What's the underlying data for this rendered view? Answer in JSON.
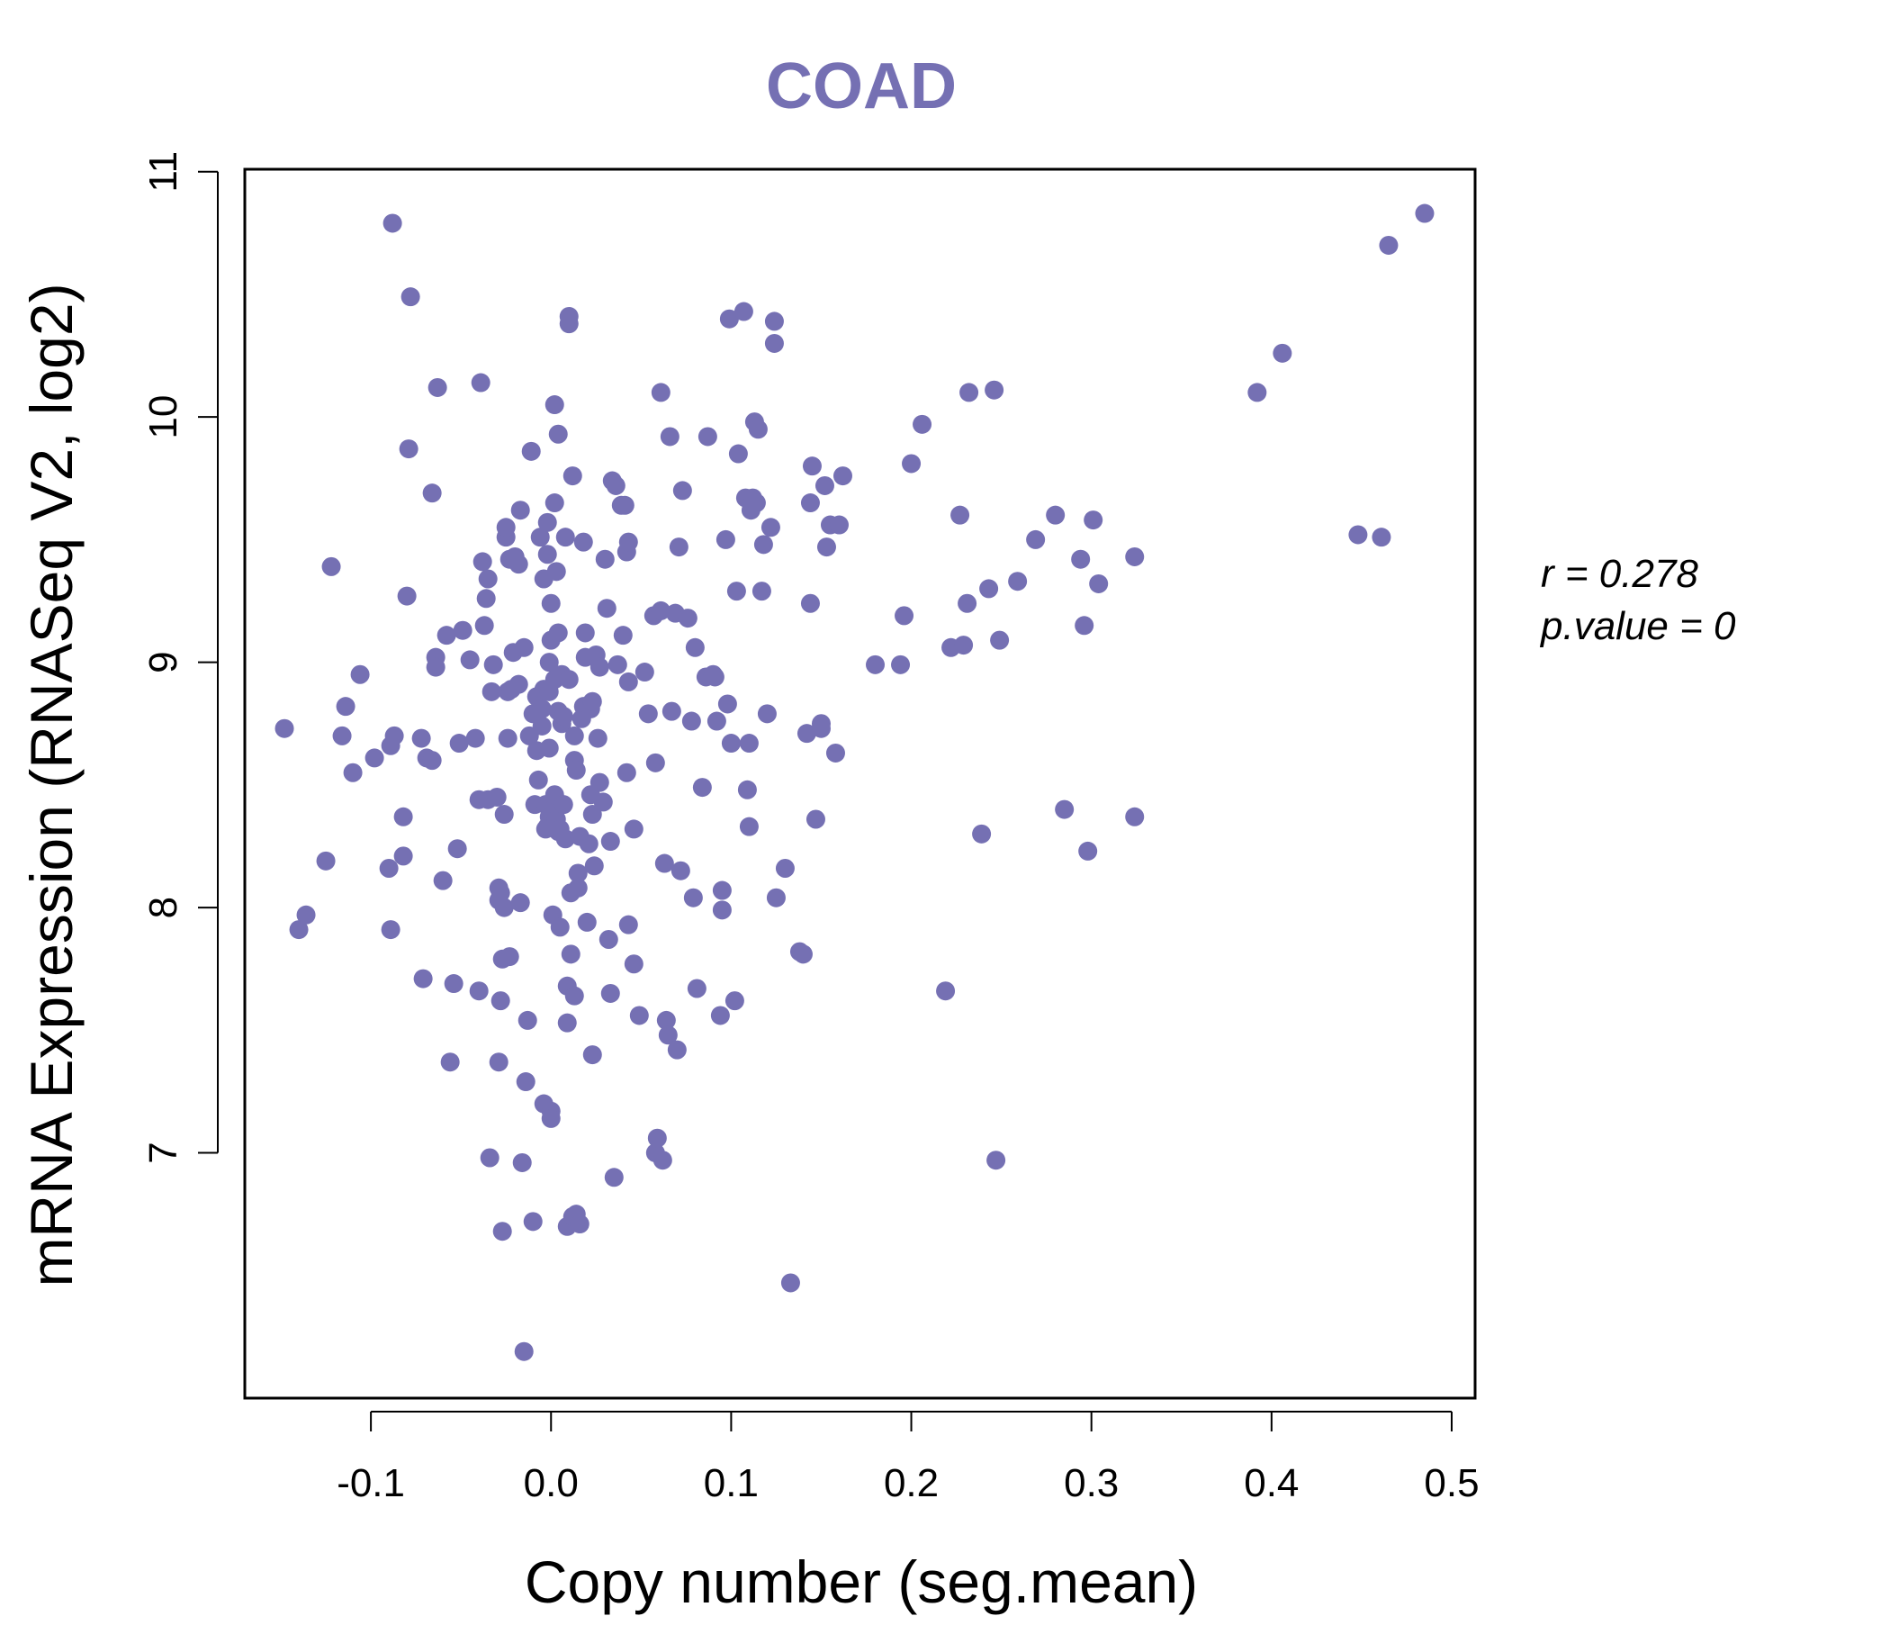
{
  "chart_data": {
    "type": "scatter",
    "title": "COAD",
    "xlabel": "Copy number (seg.mean)",
    "ylabel": "mRNA Expression (RNASeq V2, log2)",
    "xlim": [
      -0.17,
      0.513
    ],
    "ylim": [
      6.0,
      11.01
    ],
    "x_ticks": [
      -0.1,
      0.0,
      0.1,
      0.2,
      0.3,
      0.4,
      0.5
    ],
    "x_tick_labels": [
      "-0.1",
      "0.0",
      "0.1",
      "0.2",
      "0.3",
      "0.4",
      "0.5"
    ],
    "y_ticks": [
      7,
      8,
      9,
      10,
      11
    ],
    "y_tick_labels": [
      "7",
      "8",
      "9",
      "10",
      "11"
    ],
    "grid": false,
    "colors": {
      "points": "#7570b3",
      "title": "#7570b3",
      "axes": "#000000"
    },
    "stats": {
      "r_line": "r = 0.278",
      "p_line": "p.value = 0"
    },
    "points": [
      [
        -0.148,
        8.73
      ],
      [
        -0.14,
        7.91
      ],
      [
        -0.136,
        7.97
      ],
      [
        -0.125,
        8.19
      ],
      [
        -0.122,
        9.39
      ],
      [
        -0.116,
        8.7
      ],
      [
        -0.114,
        8.82
      ],
      [
        -0.11,
        8.55
      ],
      [
        -0.106,
        8.95
      ],
      [
        -0.098,
        8.61
      ],
      [
        -0.09,
        8.16
      ],
      [
        -0.089,
        7.91
      ],
      [
        -0.089,
        8.66
      ],
      [
        -0.087,
        8.7
      ],
      [
        -0.088,
        10.79
      ],
      [
        -0.082,
        8.21
      ],
      [
        -0.082,
        8.37
      ],
      [
        -0.08,
        9.27
      ],
      [
        -0.079,
        9.87
      ],
      [
        -0.078,
        10.49
      ],
      [
        -0.072,
        8.69
      ],
      [
        -0.071,
        7.71
      ],
      [
        -0.069,
        8.61
      ],
      [
        -0.066,
        8.6
      ],
      [
        -0.066,
        9.69
      ],
      [
        -0.064,
        9.02
      ],
      [
        -0.064,
        8.98
      ],
      [
        -0.063,
        10.12
      ],
      [
        -0.06,
        8.11
      ],
      [
        -0.058,
        9.11
      ],
      [
        -0.056,
        7.37
      ],
      [
        -0.054,
        7.69
      ],
      [
        -0.052,
        8.24
      ],
      [
        -0.051,
        8.67
      ],
      [
        -0.049,
        9.13
      ],
      [
        -0.045,
        9.01
      ],
      [
        -0.042,
        8.69
      ],
      [
        -0.04,
        8.44
      ],
      [
        -0.04,
        7.66
      ],
      [
        -0.039,
        10.14
      ],
      [
        -0.038,
        9.41
      ],
      [
        -0.037,
        9.15
      ],
      [
        -0.036,
        9.26
      ],
      [
        -0.035,
        8.44
      ],
      [
        -0.035,
        9.34
      ],
      [
        -0.034,
        6.98
      ],
      [
        -0.033,
        8.88
      ],
      [
        -0.032,
        8.99
      ],
      [
        -0.03,
        8.45
      ],
      [
        -0.029,
        7.37
      ],
      [
        -0.029,
        8.03
      ],
      [
        -0.029,
        8.08
      ],
      [
        -0.028,
        8.06
      ],
      [
        -0.028,
        7.62
      ],
      [
        -0.027,
        7.79
      ],
      [
        -0.027,
        6.68
      ],
      [
        -0.026,
        8.38
      ],
      [
        -0.026,
        8.0
      ],
      [
        -0.025,
        9.51
      ],
      [
        -0.025,
        9.55
      ],
      [
        -0.024,
        8.88
      ],
      [
        -0.024,
        8.69
      ],
      [
        -0.023,
        7.8
      ],
      [
        -0.023,
        9.42
      ],
      [
        -0.022,
        8.89
      ],
      [
        -0.021,
        9.04
      ],
      [
        -0.02,
        9.43
      ],
      [
        -0.018,
        9.4
      ],
      [
        -0.018,
        8.91
      ],
      [
        -0.017,
        9.62
      ],
      [
        -0.017,
        8.02
      ],
      [
        -0.016,
        6.96
      ],
      [
        -0.015,
        6.19
      ],
      [
        -0.015,
        9.06
      ],
      [
        -0.014,
        7.29
      ],
      [
        -0.013,
        7.54
      ],
      [
        -0.012,
        8.7
      ],
      [
        -0.011,
        9.86
      ],
      [
        -0.01,
        8.79
      ],
      [
        -0.01,
        6.72
      ],
      [
        -0.009,
        8.42
      ],
      [
        -0.008,
        8.64
      ],
      [
        -0.008,
        8.86
      ],
      [
        -0.007,
        8.52
      ],
      [
        -0.006,
        9.51
      ],
      [
        -0.005,
        8.81
      ],
      [
        -0.005,
        8.74
      ],
      [
        -0.004,
        8.89
      ],
      [
        -0.004,
        7.2
      ],
      [
        -0.004,
        9.34
      ],
      [
        -0.003,
        8.42
      ],
      [
        -0.003,
        8.32
      ],
      [
        -0.002,
        8.33
      ],
      [
        -0.002,
        9.44
      ],
      [
        -0.002,
        9.57
      ],
      [
        -0.001,
        8.65
      ],
      [
        -0.001,
        8.88
      ],
      [
        -0.001,
        8.37
      ],
      [
        -0.001,
        9.0
      ],
      [
        0.0,
        9.09
      ],
      [
        0.0,
        9.24
      ],
      [
        0.0,
        7.17
      ],
      [
        0.0,
        7.14
      ],
      [
        0.001,
        7.97
      ],
      [
        0.001,
        8.4
      ],
      [
        0.002,
        9.65
      ],
      [
        0.002,
        8.93
      ],
      [
        0.002,
        8.46
      ],
      [
        0.002,
        10.05
      ],
      [
        0.003,
        8.36
      ],
      [
        0.003,
        9.37
      ],
      [
        0.004,
        8.8
      ],
      [
        0.004,
        8.31
      ],
      [
        0.004,
        9.12
      ],
      [
        0.004,
        9.93
      ],
      [
        0.005,
        7.92
      ],
      [
        0.005,
        8.32
      ],
      [
        0.006,
        8.95
      ],
      [
        0.006,
        8.75
      ],
      [
        0.007,
        8.78
      ],
      [
        0.007,
        8.42
      ],
      [
        0.008,
        9.51
      ],
      [
        0.008,
        8.28
      ],
      [
        0.009,
        6.7
      ],
      [
        0.009,
        7.53
      ],
      [
        0.009,
        7.68
      ],
      [
        0.01,
        10.38
      ],
      [
        0.01,
        10.41
      ],
      [
        0.01,
        8.93
      ],
      [
        0.011,
        7.81
      ],
      [
        0.011,
        8.06
      ],
      [
        0.012,
        9.76
      ],
      [
        0.012,
        6.74
      ],
      [
        0.013,
        8.7
      ],
      [
        0.013,
        8.6
      ],
      [
        0.013,
        7.64
      ],
      [
        0.014,
        6.75
      ],
      [
        0.014,
        8.56
      ],
      [
        0.015,
        8.14
      ],
      [
        0.015,
        8.08
      ],
      [
        0.016,
        8.29
      ],
      [
        0.016,
        6.71
      ],
      [
        0.017,
        8.77
      ],
      [
        0.018,
        9.49
      ],
      [
        0.018,
        8.82
      ],
      [
        0.019,
        9.02
      ],
      [
        0.019,
        9.12
      ],
      [
        0.02,
        7.94
      ],
      [
        0.021,
        8.26
      ],
      [
        0.022,
        8.81
      ],
      [
        0.022,
        8.46
      ],
      [
        0.023,
        8.38
      ],
      [
        0.023,
        8.84
      ],
      [
        0.023,
        7.4
      ],
      [
        0.024,
        8.17
      ],
      [
        0.025,
        9.03
      ],
      [
        0.026,
        8.69
      ],
      [
        0.027,
        8.51
      ],
      [
        0.027,
        8.98
      ],
      [
        0.029,
        8.43
      ],
      [
        0.03,
        9.42
      ],
      [
        0.031,
        9.22
      ],
      [
        0.032,
        7.87
      ],
      [
        0.033,
        8.27
      ],
      [
        0.033,
        7.65
      ],
      [
        0.034,
        9.74
      ],
      [
        0.035,
        6.9
      ],
      [
        0.036,
        9.72
      ],
      [
        0.037,
        8.99
      ],
      [
        0.039,
        9.64
      ],
      [
        0.04,
        9.11
      ],
      [
        0.041,
        9.64
      ],
      [
        0.042,
        9.45
      ],
      [
        0.042,
        8.55
      ],
      [
        0.043,
        9.49
      ],
      [
        0.043,
        8.92
      ],
      [
        0.043,
        7.93
      ],
      [
        0.046,
        7.77
      ],
      [
        0.046,
        8.32
      ],
      [
        0.049,
        7.56
      ],
      [
        0.052,
        8.96
      ],
      [
        0.054,
        8.79
      ],
      [
        0.057,
        9.19
      ],
      [
        0.058,
        7.0
      ],
      [
        0.058,
        8.59
      ],
      [
        0.059,
        7.06
      ],
      [
        0.061,
        10.1
      ],
      [
        0.061,
        9.21
      ],
      [
        0.062,
        6.97
      ],
      [
        0.063,
        8.18
      ],
      [
        0.064,
        7.54
      ],
      [
        0.065,
        7.48
      ],
      [
        0.066,
        9.92
      ],
      [
        0.067,
        8.8
      ],
      [
        0.069,
        9.2
      ],
      [
        0.07,
        7.42
      ],
      [
        0.071,
        9.47
      ],
      [
        0.072,
        8.15
      ],
      [
        0.073,
        9.7
      ],
      [
        0.076,
        9.18
      ],
      [
        0.078,
        8.76
      ],
      [
        0.079,
        8.04
      ],
      [
        0.08,
        9.06
      ],
      [
        0.081,
        7.67
      ],
      [
        0.084,
        8.49
      ],
      [
        0.086,
        8.94
      ],
      [
        0.087,
        9.92
      ],
      [
        0.09,
        8.95
      ],
      [
        0.091,
        8.94
      ],
      [
        0.092,
        8.76
      ],
      [
        0.094,
        7.56
      ],
      [
        0.095,
        8.07
      ],
      [
        0.095,
        7.99
      ],
      [
        0.097,
        9.5
      ],
      [
        0.098,
        8.83
      ],
      [
        0.099,
        10.4
      ],
      [
        0.1,
        8.67
      ],
      [
        0.102,
        7.62
      ],
      [
        0.103,
        9.29
      ],
      [
        0.104,
        9.85
      ],
      [
        0.107,
        10.43
      ],
      [
        0.108,
        9.67
      ],
      [
        0.109,
        8.48
      ],
      [
        0.11,
        8.67
      ],
      [
        0.11,
        8.33
      ],
      [
        0.111,
        9.62
      ],
      [
        0.112,
        9.67
      ],
      [
        0.113,
        9.98
      ],
      [
        0.114,
        9.65
      ],
      [
        0.115,
        9.95
      ],
      [
        0.117,
        9.29
      ],
      [
        0.118,
        9.48
      ],
      [
        0.12,
        8.79
      ],
      [
        0.122,
        9.55
      ],
      [
        0.124,
        10.39
      ],
      [
        0.124,
        10.3
      ],
      [
        0.125,
        8.04
      ],
      [
        0.13,
        8.16
      ],
      [
        0.133,
        6.47
      ],
      [
        0.138,
        7.82
      ],
      [
        0.14,
        7.81
      ],
      [
        0.142,
        8.71
      ],
      [
        0.144,
        9.65
      ],
      [
        0.144,
        9.24
      ],
      [
        0.145,
        9.8
      ],
      [
        0.147,
        8.36
      ],
      [
        0.15,
        8.75
      ],
      [
        0.15,
        8.73
      ],
      [
        0.152,
        9.72
      ],
      [
        0.153,
        9.47
      ],
      [
        0.155,
        9.56
      ],
      [
        0.158,
        8.63
      ],
      [
        0.16,
        9.56
      ],
      [
        0.162,
        9.76
      ],
      [
        0.18,
        8.99
      ],
      [
        0.194,
        8.99
      ],
      [
        0.196,
        9.19
      ],
      [
        0.2,
        9.81
      ],
      [
        0.206,
        9.97
      ],
      [
        0.219,
        7.66
      ],
      [
        0.222,
        9.06
      ],
      [
        0.227,
        9.6
      ],
      [
        0.229,
        9.07
      ],
      [
        0.231,
        9.24
      ],
      [
        0.232,
        10.1
      ],
      [
        0.239,
        8.3
      ],
      [
        0.243,
        9.3
      ],
      [
        0.246,
        10.11
      ],
      [
        0.247,
        6.97
      ],
      [
        0.249,
        9.09
      ],
      [
        0.259,
        9.33
      ],
      [
        0.269,
        9.5
      ],
      [
        0.28,
        9.6
      ],
      [
        0.285,
        8.4
      ],
      [
        0.294,
        9.42
      ],
      [
        0.296,
        9.15
      ],
      [
        0.298,
        8.23
      ],
      [
        0.301,
        9.58
      ],
      [
        0.304,
        9.32
      ],
      [
        0.324,
        9.43
      ],
      [
        0.324,
        8.37
      ],
      [
        0.392,
        10.1
      ],
      [
        0.406,
        10.26
      ],
      [
        0.448,
        9.52
      ],
      [
        0.461,
        9.51
      ],
      [
        0.465,
        10.7
      ],
      [
        0.485,
        10.83
      ]
    ]
  }
}
